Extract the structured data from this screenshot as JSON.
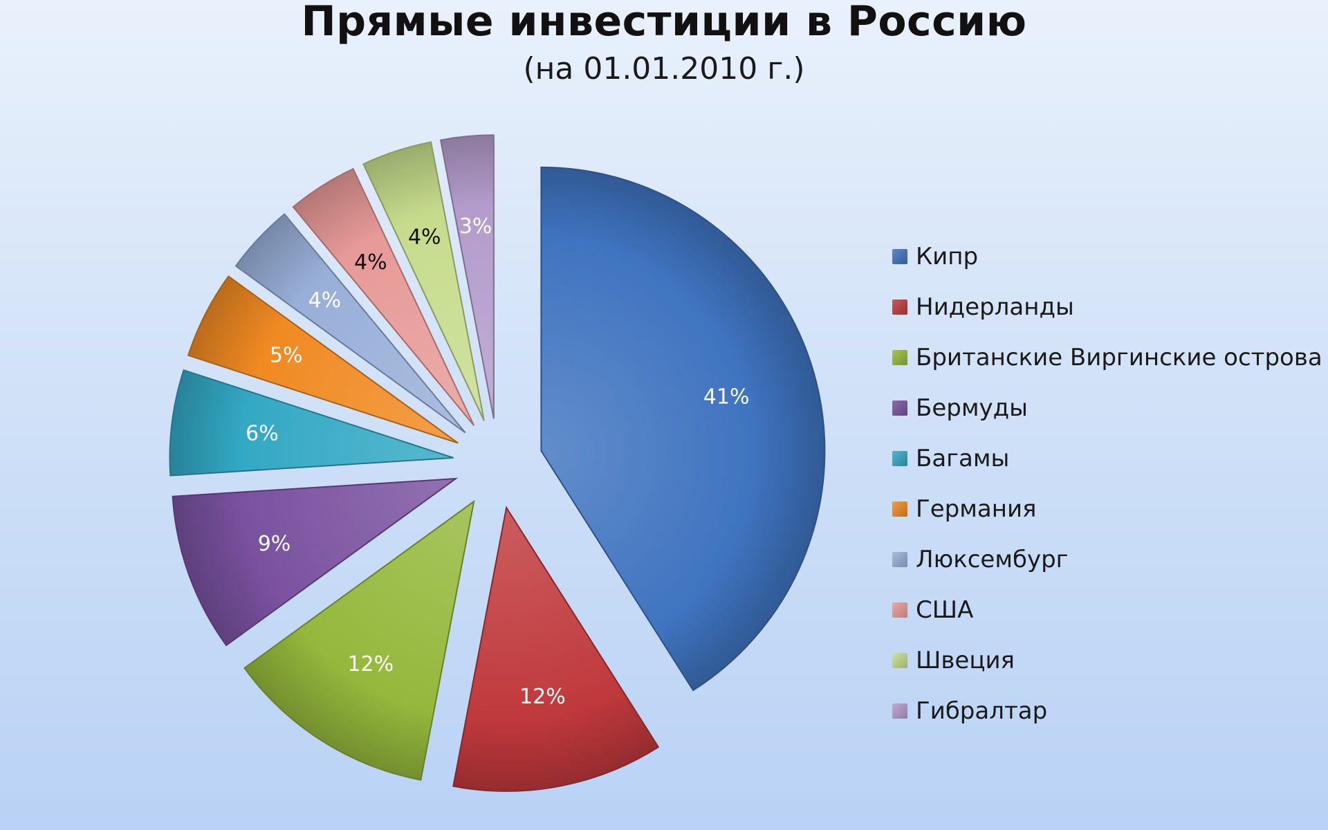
{
  "chart_data": {
    "type": "pie",
    "title": "Прямые инвестиции в Россию",
    "subtitle": "(на 01.01.2010 г.)",
    "exploded": true,
    "legend_position": "right",
    "slices": [
      {
        "label": "Кипр",
        "value": 41,
        "value_label": "41%",
        "color": "#3f74c0",
        "label_color": "#ffffff"
      },
      {
        "label": "Нидерланды",
        "value": 12,
        "value_label": "12%",
        "color": "#c0393c",
        "label_color": "#ffffff"
      },
      {
        "label": "Британские Виргинские острова",
        "value": 12,
        "value_label": "12%",
        "color": "#95b83c",
        "label_color": "#ffffff"
      },
      {
        "label": "Бермуды",
        "value": 9,
        "value_label": "9%",
        "color": "#7a52a0",
        "label_color": "#ffffff"
      },
      {
        "label": "Багамы",
        "value": 6,
        "value_label": "6%",
        "color": "#33a8c4",
        "label_color": "#ffffff"
      },
      {
        "label": "Германия",
        "value": 5,
        "value_label": "5%",
        "color": "#f08a22",
        "label_color": "#ffffff"
      },
      {
        "label": "Люксембург",
        "value": 4,
        "value_label": "4%",
        "color": "#98afd8",
        "label_color": "#ffffff"
      },
      {
        "label": "США",
        "value": 4,
        "value_label": "4%",
        "color": "#e79a97",
        "label_color": "#111111"
      },
      {
        "label": "Швеция",
        "value": 4,
        "value_label": "4%",
        "color": "#c6dc8c",
        "label_color": "#111111"
      },
      {
        "label": "Гибралтар",
        "value": 3,
        "value_label": "3%",
        "color": "#b39ccb",
        "label_color": "#ffffff"
      }
    ]
  }
}
